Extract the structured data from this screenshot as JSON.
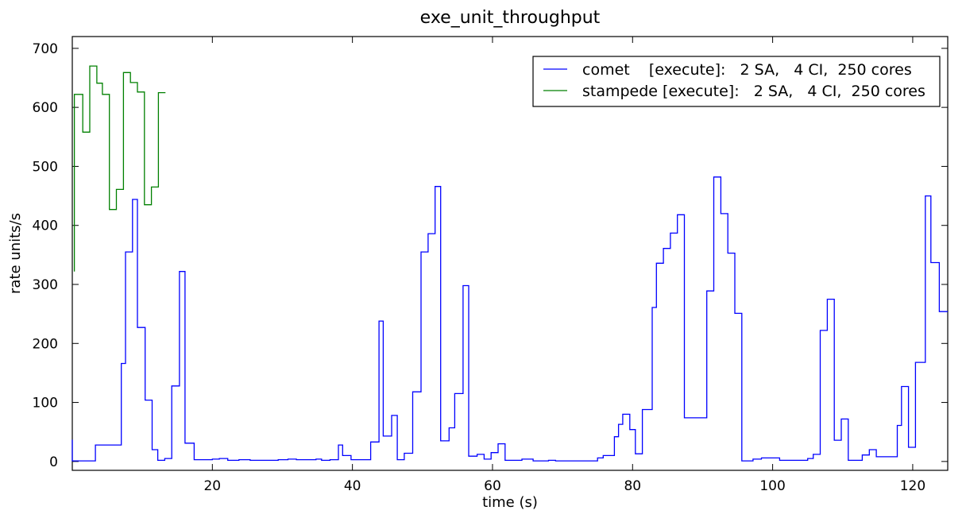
{
  "chart_data": {
    "type": "line",
    "title": "exe_unit_throughput",
    "xlabel": "time (s)",
    "ylabel": "rate units/s",
    "xlim": [
      0,
      125
    ],
    "ylim": [
      -15,
      720
    ],
    "xticks": [
      20,
      40,
      60,
      80,
      100,
      120
    ],
    "yticks": [
      0,
      100,
      200,
      300,
      400,
      500,
      600,
      700
    ],
    "grid": false,
    "legend_position": "top-right",
    "step": true,
    "series": [
      {
        "name": "comet    [execute]:   2 SA,   4 CI,  250 cores",
        "color": "#0000ff",
        "points": [
          [
            0,
            37
          ],
          [
            0,
            1
          ],
          [
            3.3,
            28
          ],
          [
            7,
            166
          ],
          [
            7.6,
            355
          ],
          [
            8.6,
            444
          ],
          [
            9.3,
            227
          ],
          [
            10.4,
            104
          ],
          [
            11.4,
            20
          ],
          [
            12.2,
            2
          ],
          [
            13.2,
            5
          ],
          [
            14.2,
            128
          ],
          [
            15.3,
            322
          ],
          [
            16.1,
            31
          ],
          [
            17.4,
            3
          ],
          [
            20,
            4
          ],
          [
            21,
            5
          ],
          [
            22.2,
            2
          ],
          [
            23.8,
            3
          ],
          [
            25.4,
            2
          ],
          [
            29.4,
            3
          ],
          [
            30.8,
            4
          ],
          [
            32,
            3
          ],
          [
            34.8,
            4
          ],
          [
            35.6,
            2
          ],
          [
            36.8,
            3
          ],
          [
            38,
            28
          ],
          [
            38.6,
            10
          ],
          [
            39.8,
            3
          ],
          [
            42.6,
            33
          ],
          [
            43.8,
            238
          ],
          [
            44.4,
            43
          ],
          [
            45.6,
            78
          ],
          [
            46.4,
            3
          ],
          [
            47.4,
            14
          ],
          [
            48.6,
            118
          ],
          [
            49.8,
            355
          ],
          [
            50.8,
            386
          ],
          [
            51.8,
            466
          ],
          [
            52.6,
            35
          ],
          [
            53.8,
            57
          ],
          [
            54.6,
            115
          ],
          [
            55.8,
            298
          ],
          [
            56.6,
            9
          ],
          [
            57.8,
            12
          ],
          [
            58.8,
            4
          ],
          [
            59.8,
            15
          ],
          [
            60.8,
            30
          ],
          [
            61.8,
            2
          ],
          [
            64.2,
            4
          ],
          [
            65.8,
            1
          ],
          [
            68,
            2
          ],
          [
            69,
            1
          ],
          [
            75,
            6
          ],
          [
            75.8,
            10
          ],
          [
            77.4,
            42
          ],
          [
            78,
            63
          ],
          [
            78.6,
            80
          ],
          [
            79.6,
            54
          ],
          [
            80.4,
            13
          ],
          [
            81.4,
            88
          ],
          [
            82.8,
            261
          ],
          [
            83.4,
            336
          ],
          [
            84.4,
            361
          ],
          [
            85.4,
            387
          ],
          [
            86.4,
            418
          ],
          [
            87.4,
            74
          ],
          [
            90.6,
            289
          ],
          [
            91.6,
            482
          ],
          [
            92.6,
            420
          ],
          [
            93.6,
            353
          ],
          [
            94.6,
            251
          ],
          [
            95.6,
            1
          ],
          [
            97.2,
            4
          ],
          [
            98.4,
            6
          ],
          [
            101,
            2
          ],
          [
            105,
            5
          ],
          [
            105.8,
            12
          ],
          [
            106.8,
            222
          ],
          [
            107.8,
            275
          ],
          [
            108.8,
            36
          ],
          [
            109.8,
            72
          ],
          [
            110.8,
            2
          ],
          [
            112.8,
            11
          ],
          [
            113.8,
            20
          ],
          [
            114.8,
            8
          ],
          [
            117.8,
            61
          ],
          [
            118.4,
            127
          ],
          [
            119.4,
            24
          ],
          [
            120.4,
            168
          ],
          [
            121.8,
            450
          ],
          [
            122.6,
            337
          ],
          [
            123.8,
            254
          ],
          [
            125,
            254
          ]
        ]
      },
      {
        "name": "stampede [execute]:   2 SA,   4 CI,  250 cores",
        "color": "#008000",
        "points": [
          [
            0.3,
            322
          ],
          [
            0.3,
            622
          ],
          [
            1.5,
            558
          ],
          [
            2.5,
            670
          ],
          [
            3.5,
            641
          ],
          [
            4.3,
            622
          ],
          [
            5.3,
            427
          ],
          [
            6.3,
            461
          ],
          [
            7.3,
            659
          ],
          [
            8.3,
            642
          ],
          [
            9.3,
            626
          ],
          [
            10.3,
            435
          ],
          [
            11.3,
            465
          ],
          [
            12.3,
            625
          ],
          [
            13.3,
            625
          ]
        ]
      }
    ]
  }
}
